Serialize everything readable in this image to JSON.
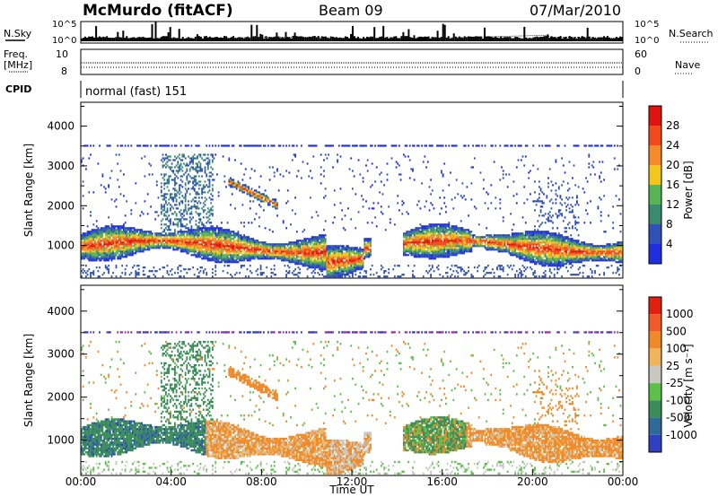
{
  "header": {
    "station": "McMurdo (fitACF)",
    "beam": "Beam 09",
    "date": "07/Mar/2010"
  },
  "top_panel": {
    "left_label_1": "N.Sky",
    "left_label_2": "Freq.",
    "left_label_3": "[MHz]",
    "left_label_4": "CPID",
    "right_label_1": "N.Search",
    "right_label_2": "Nave",
    "noise_ticks_left": [
      "10^5",
      "10^0"
    ],
    "noise_ticks_right": [
      "10^5",
      "10^0"
    ],
    "freq_ticks": [
      "10",
      "8"
    ],
    "nave_ticks": [
      "60",
      "0"
    ],
    "cpid_text": "normal (fast) 151"
  },
  "chart_data": [
    {
      "type": "heatmap",
      "panel": "power",
      "ylabel": "Slant Range [km]",
      "yticks": [
        1000,
        2000,
        3000,
        4000
      ],
      "ylim": [
        180,
        4600
      ],
      "xlim": [
        0,
        24
      ],
      "colorbar_label": "Power [dB]",
      "colorbar_ticks": [
        4,
        8,
        12,
        16,
        20,
        24,
        28
      ],
      "colors": [
        "#1f2fe0",
        "#2f52b8",
        "#3a8a6e",
        "#58b454",
        "#f2c61c",
        "#f58a2a",
        "#f24a1c",
        "#e0140f"
      ]
    },
    {
      "type": "heatmap",
      "panel": "velocity",
      "ylabel": "Slant Range [km]",
      "yticks": [
        1000,
        2000,
        3000,
        4000
      ],
      "ylim": [
        180,
        4600
      ],
      "xlim": [
        0,
        24
      ],
      "xticks": [
        "00:00",
        "04:00",
        "08:00",
        "12:00",
        "16:00",
        "20:00",
        "00:00"
      ],
      "xlabel": "Time UT",
      "colorbar_label": "Velocity [m s⁻¹]",
      "colorbar_ticks": [
        "1000",
        "500",
        "100",
        "25",
        "-25",
        "-100",
        "-500",
        "-1000"
      ],
      "colors": [
        "#2f40c0",
        "#2f6a9a",
        "#3a8c58",
        "#5cc04a",
        "#c8c8c0",
        "#f0b45a",
        "#f08a28",
        "#f05a28",
        "#e02010"
      ]
    }
  ]
}
